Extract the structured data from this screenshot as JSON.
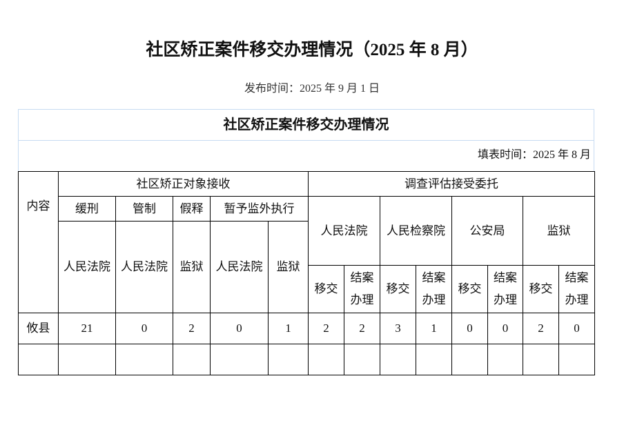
{
  "title": "社区矫正案件移交办理情况（2025 年 8 月）",
  "publish_time": "发布时间：2025 年 9 月 1 日",
  "table_title": "社区矫正案件移交办理情况",
  "fill_time": "填表时间：2025 年 8 月",
  "headers": {
    "content": "内容",
    "receive_group": "社区矫正对象接收",
    "survey_group": "调查评估接受委托",
    "receive_types": [
      "缓刑",
      "管制",
      "假释",
      "暂予监外执行"
    ],
    "receive_sources": [
      "人民法院",
      "人民法院",
      "监狱",
      "人民法院",
      "监狱"
    ],
    "survey_sources": [
      "人民法院",
      "人民检察院",
      "公安局",
      "监狱"
    ],
    "transfer": "移交",
    "close_a": "结案",
    "close_b": "办理"
  },
  "rows": [
    {
      "name": "攸县",
      "values": [
        "21",
        "0",
        "2",
        "0",
        "1",
        "2",
        "2",
        "3",
        "1",
        "0",
        "0",
        "2",
        "0"
      ]
    },
    {
      "name": "",
      "values": [
        "",
        "",
        "",
        "",
        "",
        "",
        "",
        "",
        "",
        "",
        "",
        "",
        ""
      ]
    }
  ]
}
